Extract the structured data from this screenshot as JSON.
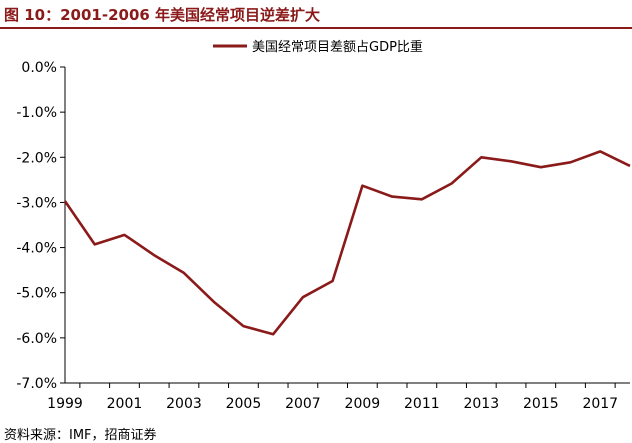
{
  "figure_title": "图 10：2001-2006 年美国经常项目逆差扩大",
  "source": "资料来源：IMF，招商证券",
  "colors": {
    "title": "#8b1a1a",
    "line": "#8b1a1a",
    "axis": "#000000"
  },
  "chart_data": {
    "type": "line",
    "title": "",
    "xlabel": "",
    "ylabel": "",
    "x": [
      1999,
      2000,
      2001,
      2002,
      2003,
      2004,
      2005,
      2006,
      2007,
      2008,
      2009,
      2010,
      2011,
      2012,
      2013,
      2014,
      2015,
      2016,
      2017,
      2018
    ],
    "series": [
      {
        "name": "美国经常项目差额占GDP比重",
        "values": [
          -2.97,
          -3.93,
          -3.72,
          -4.17,
          -4.56,
          -5.2,
          -5.74,
          -5.92,
          -5.1,
          -4.74,
          -2.63,
          -2.87,
          -2.93,
          -2.58,
          -2.0,
          -2.09,
          -2.22,
          -2.11,
          -1.87,
          -2.19
        ]
      }
    ],
    "ylim": [
      -7.0,
      0.0
    ],
    "yticks": [
      0.0,
      -1.0,
      -2.0,
      -3.0,
      -4.0,
      -5.0,
      -6.0,
      -7.0
    ],
    "ytick_labels": [
      "0.0%",
      "-1.0%",
      "-2.0%",
      "-3.0%",
      "-4.0%",
      "-5.0%",
      "-6.0%",
      "-7.0%"
    ],
    "xtick_labels": [
      "1999",
      "2001",
      "2003",
      "2005",
      "2007",
      "2009",
      "2011",
      "2013",
      "2015",
      "2017"
    ],
    "grid": false,
    "legend_position": "top-center"
  }
}
